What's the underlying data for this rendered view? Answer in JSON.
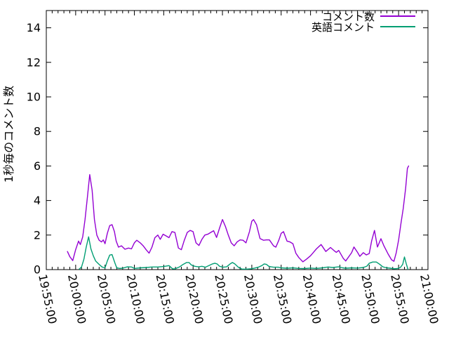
{
  "figure": {
    "background": "#ffffff",
    "border_color": "#000000",
    "tick_color": "#000000"
  },
  "chart_data": {
    "type": "line",
    "title": "",
    "xlabel": "",
    "ylabel": "1秒毎のコメント数",
    "legend_position": "top-right-inside",
    "grid": false,
    "ylim": [
      0,
      15
    ],
    "ytick_step": 2,
    "ytick_labels": [
      "0",
      "2",
      "4",
      "6",
      "8",
      "10",
      "12",
      "14"
    ],
    "x_range_minutes": [
      0,
      65
    ],
    "x_unit": "minutes after 19:55:00",
    "x_major_tick_minutes": 5,
    "x_minor_tick_minutes": 1,
    "x_tick_labels": [
      "19:55:00",
      "20:00:00",
      "20:05:00",
      "20:10:00",
      "20:15:00",
      "20:20:00",
      "20:25:00",
      "20:30:00",
      "20:35:00",
      "20:40:00",
      "20:45:00",
      "20:50:00",
      "20:55:00",
      "21:00:00"
    ],
    "series": [
      {
        "name": "コメント数",
        "color": "#9400d3",
        "points": [
          [
            3.6,
            1.05
          ],
          [
            4.0,
            0.75
          ],
          [
            4.5,
            0.52
          ],
          [
            5.0,
            1.15
          ],
          [
            5.5,
            1.65
          ],
          [
            5.8,
            1.45
          ],
          [
            6.2,
            1.9
          ],
          [
            6.6,
            2.9
          ],
          [
            7.0,
            4.2
          ],
          [
            7.4,
            5.5
          ],
          [
            7.8,
            4.6
          ],
          [
            8.2,
            2.9
          ],
          [
            8.6,
            2.0
          ],
          [
            9.0,
            1.7
          ],
          [
            9.4,
            1.6
          ],
          [
            9.7,
            1.72
          ],
          [
            10.0,
            1.5
          ],
          [
            10.4,
            2.1
          ],
          [
            10.8,
            2.55
          ],
          [
            11.2,
            2.6
          ],
          [
            11.6,
            2.2
          ],
          [
            11.9,
            1.65
          ],
          [
            12.3,
            1.3
          ],
          [
            12.8,
            1.38
          ],
          [
            13.4,
            1.18
          ],
          [
            14.0,
            1.25
          ],
          [
            14.5,
            1.2
          ],
          [
            15.0,
            1.55
          ],
          [
            15.4,
            1.7
          ],
          [
            16.0,
            1.55
          ],
          [
            16.5,
            1.38
          ],
          [
            17.0,
            1.15
          ],
          [
            17.5,
            0.95
          ],
          [
            18.0,
            1.3
          ],
          [
            18.5,
            1.85
          ],
          [
            19.0,
            2.0
          ],
          [
            19.4,
            1.75
          ],
          [
            19.9,
            2.05
          ],
          [
            20.4,
            1.95
          ],
          [
            20.9,
            1.85
          ],
          [
            21.4,
            2.2
          ],
          [
            21.9,
            2.15
          ],
          [
            22.5,
            1.25
          ],
          [
            23.0,
            1.15
          ],
          [
            23.5,
            1.7
          ],
          [
            24.0,
            2.15
          ],
          [
            24.5,
            2.27
          ],
          [
            25.0,
            2.2
          ],
          [
            25.5,
            1.55
          ],
          [
            26.0,
            1.4
          ],
          [
            26.5,
            1.75
          ],
          [
            27.0,
            2.0
          ],
          [
            27.5,
            2.05
          ],
          [
            28.0,
            2.15
          ],
          [
            28.5,
            2.25
          ],
          [
            29.0,
            1.86
          ],
          [
            29.5,
            2.4
          ],
          [
            30.0,
            2.9
          ],
          [
            30.5,
            2.5
          ],
          [
            31.0,
            2.0
          ],
          [
            31.5,
            1.55
          ],
          [
            32.0,
            1.38
          ],
          [
            32.5,
            1.6
          ],
          [
            33.0,
            1.72
          ],
          [
            33.5,
            1.7
          ],
          [
            34.0,
            1.55
          ],
          [
            34.6,
            2.2
          ],
          [
            35.0,
            2.8
          ],
          [
            35.3,
            2.9
          ],
          [
            35.8,
            2.6
          ],
          [
            36.4,
            1.8
          ],
          [
            37.0,
            1.7
          ],
          [
            37.5,
            1.72
          ],
          [
            38.0,
            1.72
          ],
          [
            38.7,
            1.38
          ],
          [
            39.1,
            1.3
          ],
          [
            39.6,
            1.7
          ],
          [
            40.0,
            2.1
          ],
          [
            40.4,
            2.2
          ],
          [
            41.0,
            1.65
          ],
          [
            41.5,
            1.6
          ],
          [
            42.0,
            1.5
          ],
          [
            42.5,
            0.95
          ],
          [
            43.0,
            0.7
          ],
          [
            43.7,
            0.45
          ],
          [
            44.3,
            0.6
          ],
          [
            45.0,
            0.8
          ],
          [
            45.5,
            1.0
          ],
          [
            46.0,
            1.2
          ],
          [
            46.8,
            1.45
          ],
          [
            47.6,
            1.05
          ],
          [
            48.4,
            1.28
          ],
          [
            49.0,
            1.1
          ],
          [
            49.4,
            1.0
          ],
          [
            49.8,
            1.11
          ],
          [
            50.6,
            0.64
          ],
          [
            51.0,
            0.5
          ],
          [
            52.0,
            0.98
          ],
          [
            52.4,
            1.31
          ],
          [
            53.0,
            1.0
          ],
          [
            53.4,
            0.77
          ],
          [
            54.0,
            0.98
          ],
          [
            54.5,
            0.85
          ],
          [
            55.0,
            0.93
          ],
          [
            55.4,
            1.66
          ],
          [
            55.9,
            2.27
          ],
          [
            56.4,
            1.31
          ],
          [
            57.0,
            1.79
          ],
          [
            57.5,
            1.38
          ],
          [
            58.2,
            0.91
          ],
          [
            58.8,
            0.57
          ],
          [
            59.2,
            0.48
          ],
          [
            59.6,
            0.98
          ],
          [
            60.0,
            1.72
          ],
          [
            60.4,
            2.67
          ],
          [
            60.8,
            3.55
          ],
          [
            61.2,
            4.71
          ],
          [
            61.5,
            5.86
          ],
          [
            61.7,
            6.0
          ]
        ]
      },
      {
        "name": "英語コメント",
        "color": "#009e73",
        "points": [
          [
            5.6,
            0.03
          ],
          [
            6.0,
            0.15
          ],
          [
            6.4,
            0.6
          ],
          [
            6.8,
            1.3
          ],
          [
            7.2,
            1.9
          ],
          [
            7.6,
            1.2
          ],
          [
            8.0,
            0.8
          ],
          [
            8.4,
            0.5
          ],
          [
            9.0,
            0.3
          ],
          [
            9.5,
            0.15
          ],
          [
            10.0,
            0.1
          ],
          [
            10.4,
            0.5
          ],
          [
            10.8,
            0.84
          ],
          [
            11.2,
            0.87
          ],
          [
            11.7,
            0.37
          ],
          [
            12.0,
            0.1
          ],
          [
            12.5,
            0.07
          ],
          [
            13.0,
            0.08
          ],
          [
            13.8,
            0.16
          ],
          [
            14.5,
            0.15
          ],
          [
            15.0,
            0.07
          ],
          [
            16.0,
            0.1
          ],
          [
            17.0,
            0.12
          ],
          [
            18.0,
            0.15
          ],
          [
            19.0,
            0.15
          ],
          [
            20.0,
            0.18
          ],
          [
            20.9,
            0.23
          ],
          [
            21.5,
            0.05
          ],
          [
            21.9,
            0.04
          ],
          [
            22.7,
            0.16
          ],
          [
            23.3,
            0.3
          ],
          [
            23.9,
            0.41
          ],
          [
            24.3,
            0.41
          ],
          [
            24.7,
            0.27
          ],
          [
            25.3,
            0.19
          ],
          [
            25.9,
            0.16
          ],
          [
            26.5,
            0.19
          ],
          [
            27.1,
            0.14
          ],
          [
            27.7,
            0.23
          ],
          [
            28.3,
            0.33
          ],
          [
            28.7,
            0.37
          ],
          [
            29.1,
            0.33
          ],
          [
            29.5,
            0.19
          ],
          [
            30.1,
            0.14
          ],
          [
            30.7,
            0.16
          ],
          [
            31.3,
            0.33
          ],
          [
            31.7,
            0.41
          ],
          [
            32.1,
            0.33
          ],
          [
            32.7,
            0.14
          ],
          [
            33.3,
            0.03
          ],
          [
            34.1,
            0.03
          ],
          [
            34.9,
            0.05
          ],
          [
            35.5,
            0.09
          ],
          [
            36.1,
            0.14
          ],
          [
            36.7,
            0.23
          ],
          [
            37.1,
            0.33
          ],
          [
            37.5,
            0.3
          ],
          [
            37.9,
            0.19
          ],
          [
            38.3,
            0.16
          ],
          [
            38.7,
            0.14
          ],
          [
            39.5,
            0.14
          ],
          [
            40.0,
            0.1
          ],
          [
            41.0,
            0.08
          ],
          [
            42.0,
            0.1
          ],
          [
            43.0,
            0.07
          ],
          [
            44.0,
            0.06
          ],
          [
            45.0,
            0.09
          ],
          [
            46.0,
            0.07
          ],
          [
            47.0,
            0.1
          ],
          [
            48.0,
            0.15
          ],
          [
            48.8,
            0.12
          ],
          [
            49.8,
            0.16
          ],
          [
            50.5,
            0.1
          ],
          [
            51.0,
            0.08
          ],
          [
            52.0,
            0.1
          ],
          [
            53.0,
            0.09
          ],
          [
            54.0,
            0.12
          ],
          [
            54.6,
            0.2
          ],
          [
            55.0,
            0.37
          ],
          [
            55.6,
            0.44
          ],
          [
            56.2,
            0.44
          ],
          [
            56.8,
            0.3
          ],
          [
            57.3,
            0.16
          ],
          [
            58.0,
            0.1
          ],
          [
            58.6,
            0.08
          ],
          [
            59.2,
            0.05
          ],
          [
            59.8,
            0.06
          ],
          [
            60.3,
            0.12
          ],
          [
            60.7,
            0.3
          ],
          [
            61.0,
            0.73
          ],
          [
            61.3,
            0.35
          ],
          [
            61.6,
            0.02
          ]
        ]
      }
    ]
  }
}
